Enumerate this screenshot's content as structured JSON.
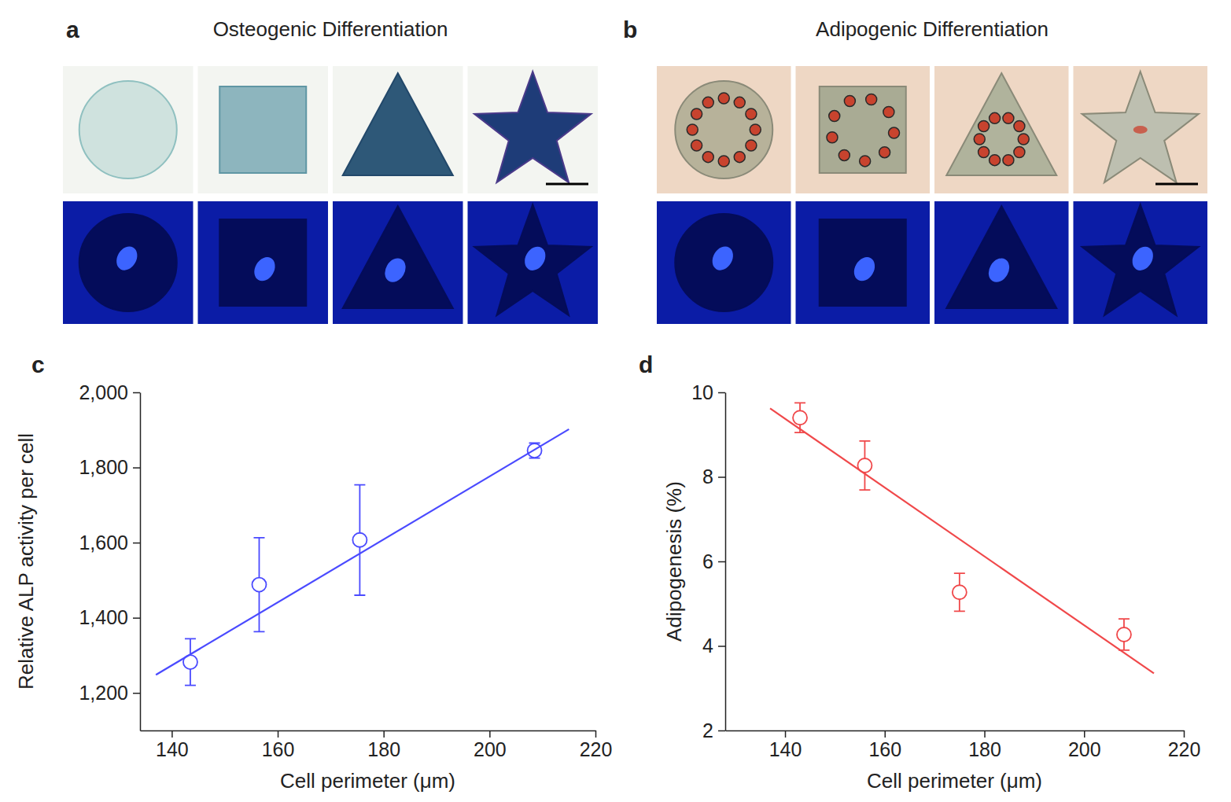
{
  "image_panels": [
    {
      "panel_label": "a",
      "title": "Osteogenic Differentiation"
    },
    {
      "panel_label": "b",
      "title": "Adipogenic Differentiation"
    }
  ],
  "chart_data": [
    {
      "type": "scatter",
      "panel_label": "c",
      "x_label": "Cell perimeter (μm)",
      "y_label": "Relative ALP activity per cell",
      "xlim": [
        134,
        220
      ],
      "xticks": [
        140,
        160,
        180,
        200,
        220
      ],
      "ylim": [
        1100,
        2000
      ],
      "yticks": [
        {
          "value": 1200,
          "label": "1,200"
        },
        {
          "value": 1400,
          "label": "1,400"
        },
        {
          "value": 1600,
          "label": "1,600"
        },
        {
          "value": 1800,
          "label": "1,800"
        },
        {
          "value": 2000,
          "label": "2,000"
        }
      ],
      "series": [
        {
          "type": "scatter",
          "marker": "circle-open",
          "color": "#4a4aff",
          "x": [
            143.5,
            156.5,
            175.5,
            208.5
          ],
          "values": [
            1282,
            1488,
            1607,
            1845
          ],
          "errors": [
            62,
            125,
            147,
            20
          ]
        },
        {
          "type": "line",
          "line_style": "solid",
          "color": "#4a4aff",
          "x": [
            137,
            215
          ],
          "values": [
            1248,
            1902
          ]
        }
      ]
    },
    {
      "type": "scatter",
      "panel_label": "d",
      "x_label": "Cell perimeter (μm)",
      "y_label": "Adipogenesis (%)",
      "xlim": [
        128,
        220
      ],
      "xticks": [
        140,
        160,
        180,
        200,
        220
      ],
      "ylim": [
        2,
        10
      ],
      "yticks": [
        2,
        4,
        6,
        8,
        10
      ],
      "series": [
        {
          "type": "scatter",
          "marker": "circle-open",
          "color": "#f0484a",
          "x": [
            143,
            156,
            175,
            208
          ],
          "values": [
            9.4,
            8.27,
            5.27,
            4.27
          ],
          "errors": [
            0.35,
            0.58,
            0.45,
            0.37
          ]
        },
        {
          "type": "line",
          "line_style": "solid",
          "color": "#f0484a",
          "x": [
            137,
            214
          ],
          "values": [
            9.62,
            3.35
          ]
        }
      ]
    }
  ]
}
